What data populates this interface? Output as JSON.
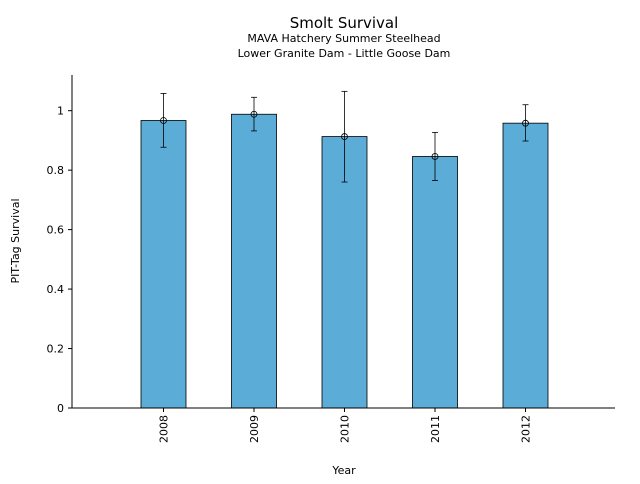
{
  "chart_data": {
    "type": "bar",
    "title": "Smolt Survival",
    "subtitle_lines": [
      "MAVA Hatchery Summer Steelhead",
      "Lower Granite Dam - Little Goose Dam"
    ],
    "xlabel": "Year",
    "ylabel": "PIT-Tag Survival",
    "categories": [
      "2008",
      "2009",
      "2010",
      "2011",
      "2012"
    ],
    "values": [
      0.967,
      0.988,
      0.913,
      0.846,
      0.958
    ],
    "error_low": [
      0.877,
      0.932,
      0.76,
      0.765,
      0.898
    ],
    "error_high": [
      1.058,
      1.045,
      1.065,
      0.927,
      1.02
    ],
    "ylim": [
      0,
      1.12
    ],
    "yticks": [
      0,
      0.2,
      0.4,
      0.6,
      0.8,
      1
    ],
    "ytick_labels": [
      "0",
      "0.2",
      "0.4",
      "0.6",
      "0.8",
      "1"
    ],
    "bar_color": "#5bacd6",
    "bar_edge_color": "#000000",
    "grid": false,
    "legend": false
  }
}
